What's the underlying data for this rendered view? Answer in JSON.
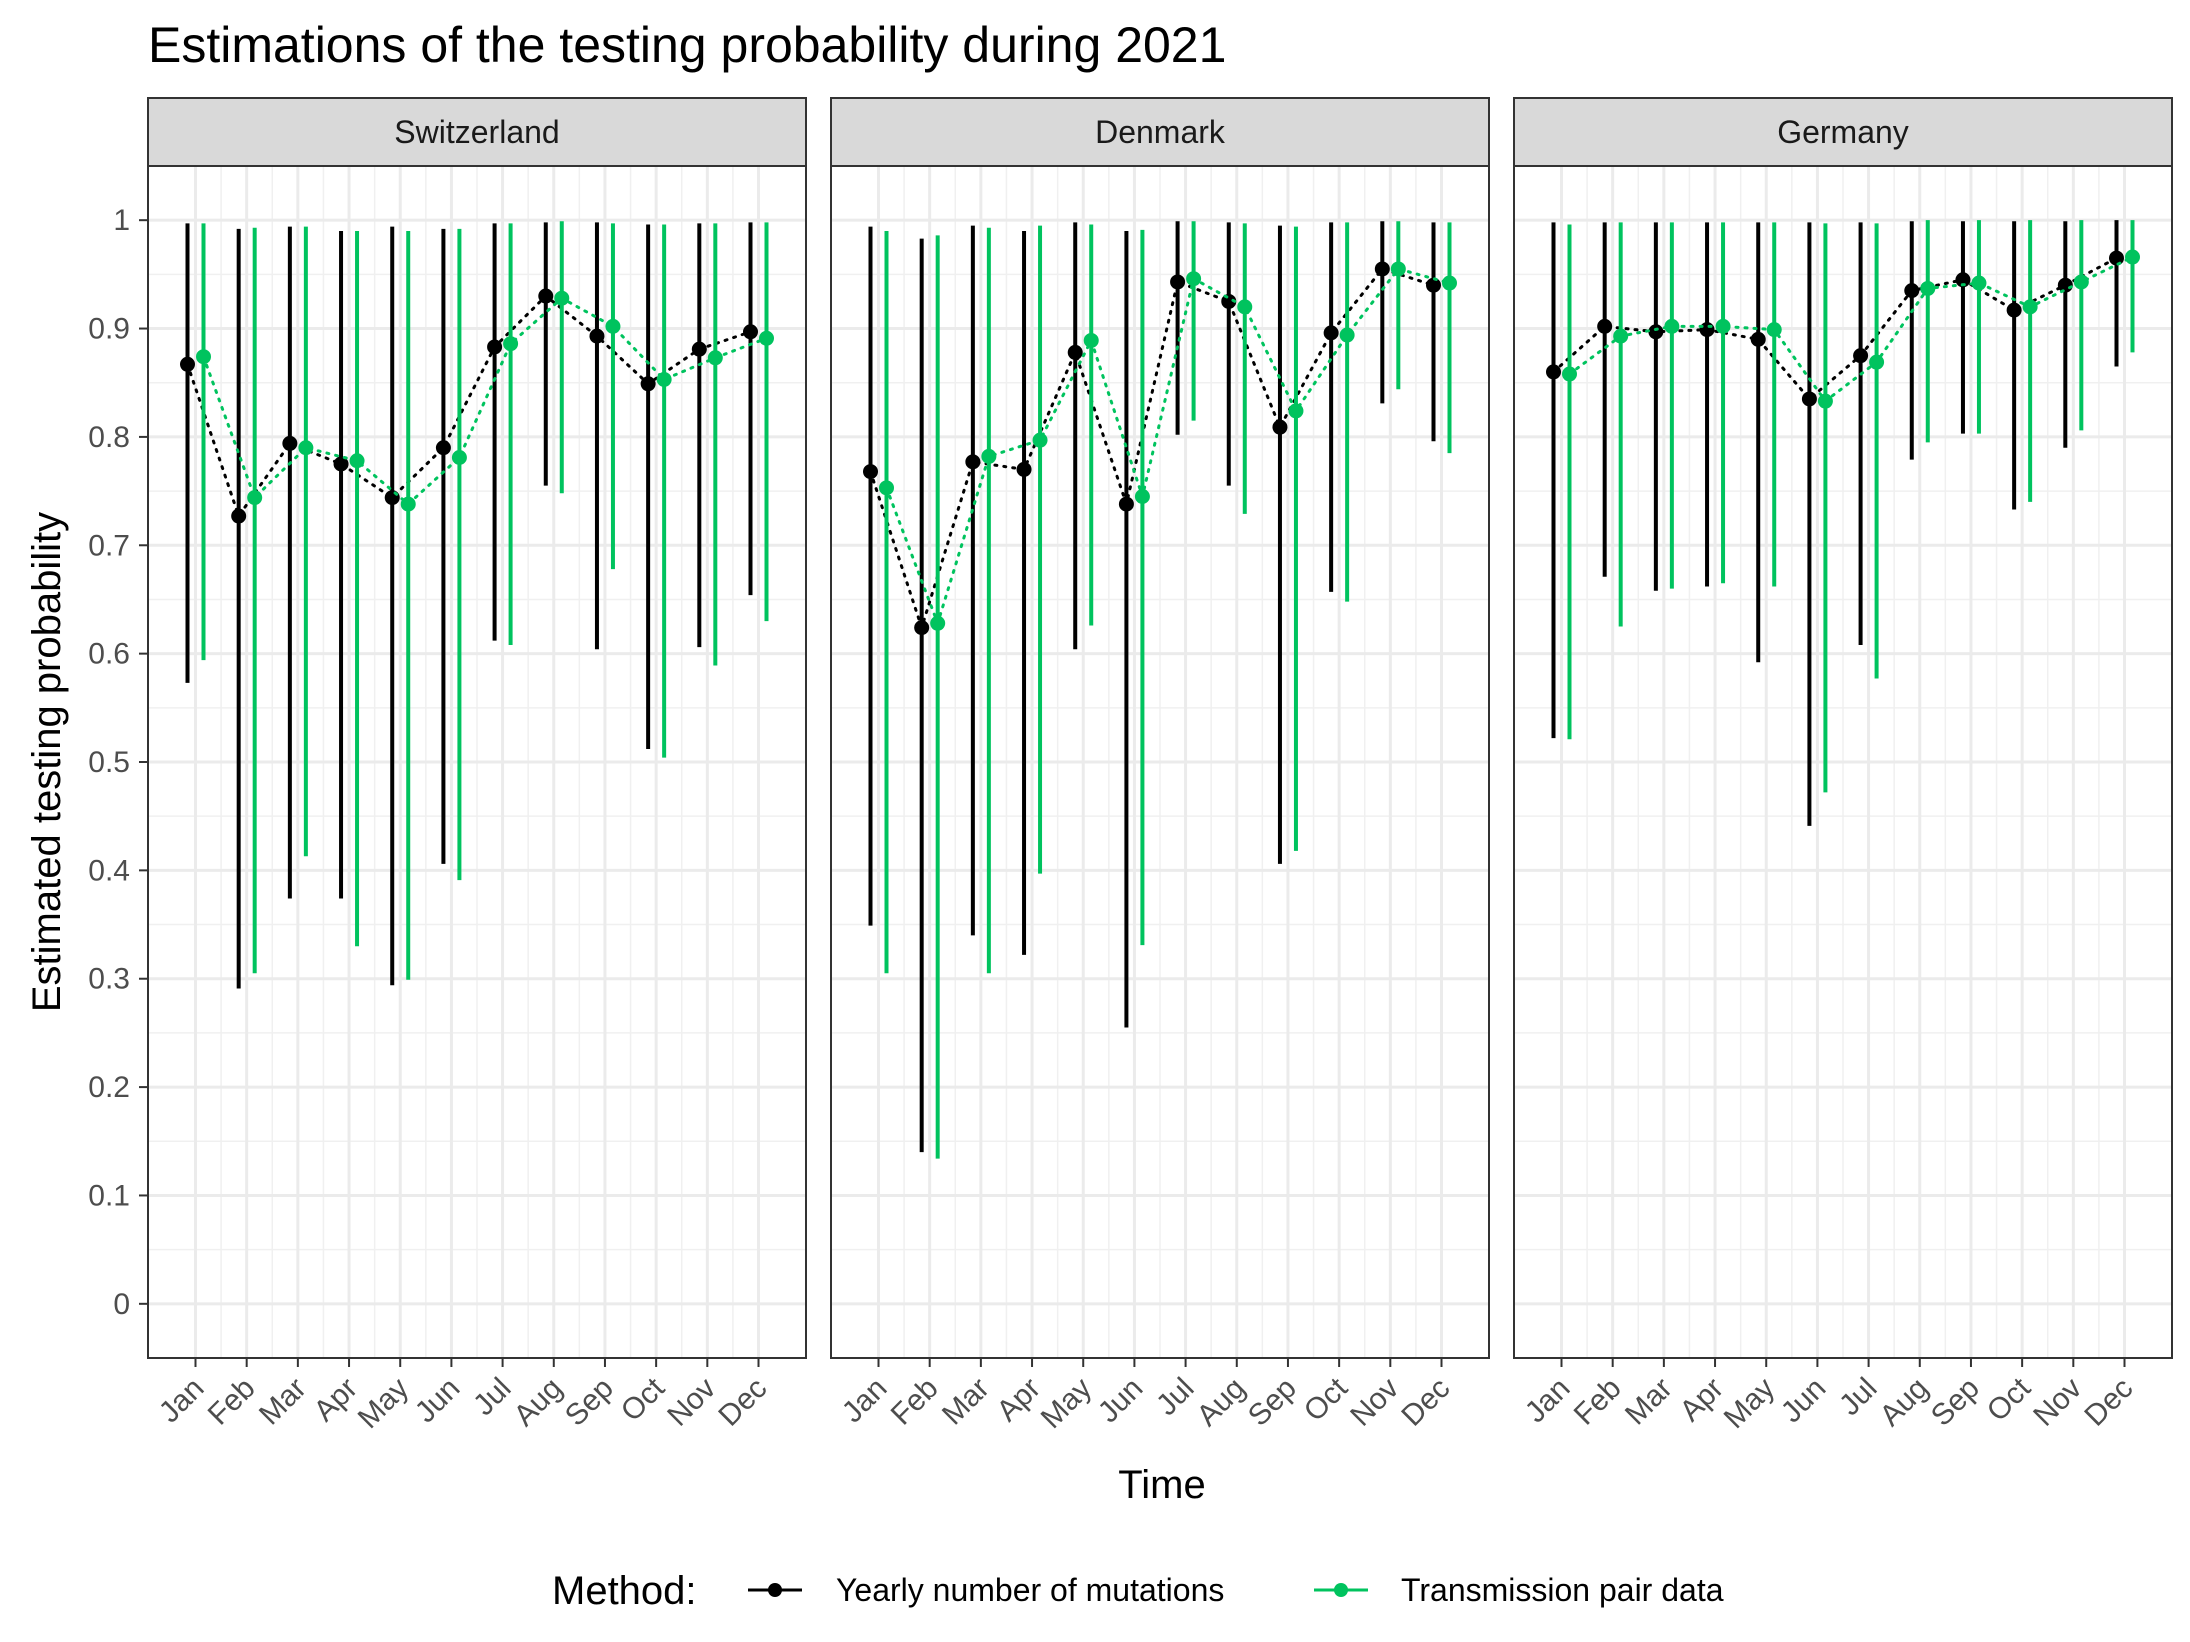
{
  "chart_data": {
    "type": "line",
    "title": "Estimations of the testing probability during 2021",
    "xlabel": "Time",
    "ylabel": "Estimated testing probability",
    "ylim": [
      -0.05,
      1.05
    ],
    "yticks": [
      0,
      0.1,
      0.2,
      0.3,
      0.4,
      0.5,
      0.6,
      0.7,
      0.8,
      0.9,
      1
    ],
    "ytick_labels": [
      "0",
      "0.1",
      "0.2",
      "0.3",
      "0.4",
      "0.5",
      "0.6",
      "0.7",
      "0.8",
      "0.9",
      "1"
    ],
    "categories": [
      "Jan",
      "Feb",
      "Mar",
      "Apr",
      "May",
      "Jun",
      "Jul",
      "Aug",
      "Sep",
      "Oct",
      "Nov",
      "Dec"
    ],
    "grid": true,
    "legend": {
      "title": "Method:",
      "placement": "bottom",
      "entries": [
        "Yearly number of mutations",
        "Transmission pair data"
      ]
    },
    "colors": {
      "mutations": "#000000",
      "pairs": "#00C35E"
    },
    "panels": [
      {
        "name": "Switzerland",
        "series": [
          {
            "name": "Yearly number of mutations",
            "values": [
              0.867,
              0.727,
              0.794,
              0.775,
              0.744,
              0.79,
              0.883,
              0.93,
              0.893,
              0.849,
              0.881,
              0.897
            ],
            "lower": [
              0.573,
              0.291,
              0.374,
              0.374,
              0.294,
              0.406,
              0.612,
              0.755,
              0.604,
              0.512,
              0.606,
              0.654
            ],
            "upper": [
              0.997,
              0.992,
              0.994,
              0.99,
              0.994,
              0.992,
              0.997,
              0.998,
              0.998,
              0.996,
              0.997,
              0.998
            ]
          },
          {
            "name": "Transmission pair data",
            "values": [
              0.874,
              0.744,
              0.79,
              0.778,
              0.738,
              0.781,
              0.886,
              0.928,
              0.902,
              0.853,
              0.873,
              0.891
            ],
            "lower": [
              0.594,
              0.305,
              0.413,
              0.33,
              0.299,
              0.391,
              0.608,
              0.748,
              0.678,
              0.504,
              0.589,
              0.63
            ],
            "upper": [
              0.997,
              0.993,
              0.994,
              0.99,
              0.99,
              0.992,
              0.997,
              0.999,
              0.997,
              0.996,
              0.997,
              0.998
            ]
          }
        ]
      },
      {
        "name": "Denmark",
        "series": [
          {
            "name": "Yearly number of mutations",
            "values": [
              0.768,
              0.624,
              0.777,
              0.77,
              0.878,
              0.738,
              0.943,
              0.925,
              0.809,
              0.896,
              0.955,
              0.94
            ],
            "lower": [
              0.349,
              0.14,
              0.34,
              0.322,
              0.604,
              0.255,
              0.802,
              0.755,
              0.406,
              0.657,
              0.831,
              0.796
            ],
            "upper": [
              0.994,
              0.983,
              0.995,
              0.99,
              0.998,
              0.99,
              0.999,
              0.998,
              0.995,
              0.998,
              0.999,
              0.998
            ]
          },
          {
            "name": "Transmission pair data",
            "values": [
              0.753,
              0.628,
              0.782,
              0.797,
              0.889,
              0.745,
              0.946,
              0.92,
              0.824,
              0.894,
              0.955,
              0.942
            ],
            "lower": [
              0.305,
              0.134,
              0.305,
              0.397,
              0.626,
              0.331,
              0.815,
              0.729,
              0.418,
              0.648,
              0.844,
              0.785
            ],
            "upper": [
              0.99,
              0.986,
              0.993,
              0.995,
              0.996,
              0.991,
              0.999,
              0.997,
              0.994,
              0.998,
              0.999,
              0.998
            ]
          }
        ]
      },
      {
        "name": "Germany",
        "series": [
          {
            "name": "Yearly number of mutations",
            "values": [
              0.86,
              0.902,
              0.897,
              0.899,
              0.89,
              0.835,
              0.875,
              0.935,
              0.945,
              0.917,
              0.94,
              0.965
            ],
            "lower": [
              0.522,
              0.671,
              0.658,
              0.662,
              0.592,
              0.441,
              0.608,
              0.779,
              0.803,
              0.733,
              0.79,
              0.865
            ],
            "upper": [
              0.998,
              0.998,
              0.998,
              0.998,
              0.998,
              0.998,
              0.998,
              0.999,
              0.999,
              0.999,
              0.999,
              1.0
            ]
          },
          {
            "name": "Transmission pair data",
            "values": [
              0.858,
              0.893,
              0.902,
              0.902,
              0.899,
              0.833,
              0.869,
              0.937,
              0.942,
              0.92,
              0.943,
              0.966
            ],
            "lower": [
              0.521,
              0.625,
              0.66,
              0.665,
              0.662,
              0.472,
              0.577,
              0.795,
              0.803,
              0.74,
              0.806,
              0.878
            ],
            "upper": [
              0.996,
              0.998,
              0.998,
              0.998,
              0.998,
              0.997,
              0.997,
              1.0,
              1.0,
              1.0,
              1.0,
              1.0
            ]
          }
        ]
      }
    ]
  }
}
